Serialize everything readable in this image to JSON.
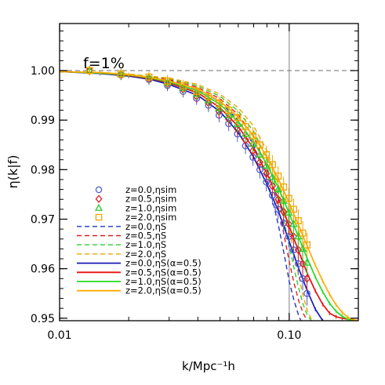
{
  "chart_data": {
    "type": "line",
    "title": "",
    "annotation": "f=1%",
    "xlabel": "k/Mpc⁻¹h",
    "ylabel": "η(k|f)",
    "xscale": "log",
    "xlim": [
      0.01,
      0.2
    ],
    "ylim": [
      0.9495,
      1.0095
    ],
    "x_ticks": [
      0.01,
      0.1
    ],
    "x_tick_labels": [
      "0.01",
      "0.10"
    ],
    "y_ticks": [
      0.95,
      0.96,
      0.97,
      0.98,
      0.99,
      1.0
    ],
    "y_tick_labels": [
      "0.95",
      "0.96",
      "0.97",
      "0.98",
      "0.99",
      "1.00"
    ],
    "reference_hline": 1.0,
    "reference_vline": 0.1,
    "grid": false,
    "legend_position": "lower-left",
    "series": [
      {
        "name": "z=0.0,ηsim",
        "kind": "markers",
        "marker": "circle",
        "color": "#4a5fd0",
        "x": [
          0.0135,
          0.0185,
          0.0245,
          0.0295,
          0.0345,
          0.0395,
          0.0445,
          0.0495,
          0.0545,
          0.0595,
          0.0645,
          0.0695,
          0.0745,
          0.0795,
          0.0845,
          0.0895,
          0.0945,
          0.0995,
          0.1045,
          0.1095,
          0.1145,
          0.1195
        ],
        "y": [
          1.0,
          0.9991,
          0.9982,
          0.997,
          0.9958,
          0.9944,
          0.993,
          0.991,
          0.9893,
          0.9872,
          0.9848,
          0.9825,
          0.98,
          0.9775,
          0.9748,
          0.972,
          0.9692,
          0.9665,
          0.9638,
          0.961,
          0.958,
          0.955
        ]
      },
      {
        "name": "z=0.5,ηsim",
        "kind": "markers",
        "marker": "diamond",
        "color": "#e02020",
        "x": [
          0.0135,
          0.0185,
          0.0245,
          0.0295,
          0.0345,
          0.0395,
          0.0445,
          0.0495,
          0.0545,
          0.0595,
          0.0645,
          0.0695,
          0.0745,
          0.0795,
          0.0845,
          0.0895,
          0.0945,
          0.0995,
          0.1045,
          0.1095,
          0.1145,
          0.1195
        ],
        "y": [
          1.0,
          0.9992,
          0.9984,
          0.9973,
          0.9962,
          0.9948,
          0.9935,
          0.9917,
          0.9902,
          0.9882,
          0.986,
          0.9838,
          0.9815,
          0.9792,
          0.9767,
          0.974,
          0.9715,
          0.969,
          0.9665,
          0.9638,
          0.961,
          0.958
        ]
      },
      {
        "name": "z=1.0,ηsim",
        "kind": "markers",
        "marker": "triangle",
        "color": "#2ecc2e",
        "x": [
          0.0135,
          0.0185,
          0.0245,
          0.0295,
          0.0345,
          0.0395,
          0.0445,
          0.0495,
          0.0545,
          0.0595,
          0.0645,
          0.0695,
          0.0745,
          0.0795,
          0.0845,
          0.0895,
          0.0945,
          0.0995,
          0.1045,
          0.1095,
          0.1145,
          0.1195
        ],
        "y": [
          1.0,
          0.9993,
          0.9986,
          0.9976,
          0.9965,
          0.9953,
          0.994,
          0.9924,
          0.991,
          0.9892,
          0.9872,
          0.9852,
          0.983,
          0.9808,
          0.9785,
          0.976,
          0.9737,
          0.9713,
          0.969,
          0.9665,
          0.964,
          0.9612
        ]
      },
      {
        "name": "z=2.0,ηsim",
        "kind": "markers",
        "marker": "square",
        "color": "#f0a500",
        "x": [
          0.0135,
          0.0185,
          0.0245,
          0.0295,
          0.0345,
          0.0395,
          0.0445,
          0.0495,
          0.0545,
          0.0595,
          0.0645,
          0.0695,
          0.0745,
          0.0795,
          0.0845,
          0.0895,
          0.0945,
          0.0995,
          0.1045,
          0.1095,
          0.1145,
          0.1195
        ],
        "y": [
          1.0,
          0.9993,
          0.9987,
          0.9979,
          0.9969,
          0.9958,
          0.9947,
          0.9933,
          0.992,
          0.9905,
          0.9887,
          0.9868,
          0.985,
          0.983,
          0.981,
          0.9787,
          0.9765,
          0.9742,
          0.972,
          0.9697,
          0.9672,
          0.9648
        ]
      },
      {
        "name": "z=0.0,ηS",
        "kind": "dashed",
        "color": "#2233cc",
        "x": [
          0.01,
          0.015,
          0.02,
          0.03,
          0.04,
          0.05,
          0.06,
          0.07,
          0.08,
          0.085,
          0.09,
          0.095,
          0.1,
          0.105,
          0.11,
          0.115
        ],
        "y": [
          0.9998,
          0.9995,
          0.9991,
          0.998,
          0.9962,
          0.9937,
          0.99,
          0.985,
          0.978,
          0.9735,
          0.9685,
          0.963,
          0.9575,
          0.9535,
          0.9505,
          0.9485
        ]
      },
      {
        "name": "z=0.5,ηS",
        "kind": "dashed",
        "color": "#e02020",
        "x": [
          0.01,
          0.015,
          0.02,
          0.03,
          0.04,
          0.05,
          0.06,
          0.07,
          0.08,
          0.09,
          0.095,
          0.1,
          0.105,
          0.11,
          0.115,
          0.12
        ],
        "y": [
          0.9998,
          0.9996,
          0.9992,
          0.9982,
          0.9966,
          0.9943,
          0.9911,
          0.9866,
          0.9805,
          0.972,
          0.9668,
          0.9615,
          0.957,
          0.9535,
          0.951,
          0.9495
        ]
      },
      {
        "name": "z=1.0,ηS",
        "kind": "dashed",
        "color": "#2ecc2e",
        "x": [
          0.01,
          0.015,
          0.02,
          0.03,
          0.04,
          0.05,
          0.06,
          0.07,
          0.08,
          0.09,
          0.1,
          0.105,
          0.11,
          0.115,
          0.12,
          0.125
        ],
        "y": [
          0.9998,
          0.9996,
          0.9993,
          0.9984,
          0.9969,
          0.9948,
          0.9918,
          0.9877,
          0.9822,
          0.9745,
          0.9648,
          0.96,
          0.956,
          0.9528,
          0.9506,
          0.9495
        ]
      },
      {
        "name": "z=2.0,ηS",
        "kind": "dashed",
        "color": "#f0a500",
        "x": [
          0.01,
          0.015,
          0.02,
          0.03,
          0.04,
          0.05,
          0.06,
          0.07,
          0.08,
          0.09,
          0.1,
          0.11,
          0.115,
          0.12,
          0.125,
          0.13
        ],
        "y": [
          0.9998,
          0.9996,
          0.9993,
          0.9985,
          0.9972,
          0.9952,
          0.9925,
          0.9888,
          0.9838,
          0.9768,
          0.968,
          0.9585,
          0.9545,
          0.9515,
          0.9498,
          0.949
        ]
      },
      {
        "name": "z=0.0,ηS(α=0.5)",
        "kind": "solid",
        "color": "#1a1ab8",
        "x": [
          0.01,
          0.015,
          0.02,
          0.025,
          0.03,
          0.04,
          0.05,
          0.06,
          0.07,
          0.08,
          0.09,
          0.1,
          0.11,
          0.12,
          0.13,
          0.14
        ],
        "y": [
          0.9998,
          0.9994,
          0.9989,
          0.9982,
          0.9972,
          0.995,
          0.9917,
          0.9875,
          0.9825,
          0.977,
          0.9715,
          0.9655,
          0.96,
          0.9555,
          0.9518,
          0.9495
        ]
      },
      {
        "name": "z=0.5,ηS(α=0.5)",
        "kind": "solid",
        "color": "#e81010",
        "x": [
          0.01,
          0.015,
          0.02,
          0.025,
          0.03,
          0.04,
          0.05,
          0.06,
          0.07,
          0.08,
          0.09,
          0.1,
          0.11,
          0.12,
          0.13,
          0.14,
          0.15,
          0.16,
          0.17,
          0.18
        ],
        "y": [
          0.9998,
          0.9995,
          0.999,
          0.9984,
          0.9975,
          0.9955,
          0.9925,
          0.9887,
          0.9842,
          0.9792,
          0.974,
          0.9686,
          0.9635,
          0.959,
          0.9555,
          0.9528,
          0.951,
          0.9503,
          0.95,
          0.9498
        ]
      },
      {
        "name": "z=1.0,ηS(α=0.5)",
        "kind": "solid",
        "color": "#22dd22",
        "x": [
          0.01,
          0.015,
          0.02,
          0.025,
          0.03,
          0.04,
          0.05,
          0.06,
          0.07,
          0.08,
          0.09,
          0.1,
          0.11,
          0.12,
          0.13,
          0.14,
          0.15,
          0.16,
          0.17,
          0.18,
          0.19
        ],
        "y": [
          0.9998,
          0.9995,
          0.9991,
          0.9985,
          0.9977,
          0.9959,
          0.9932,
          0.9897,
          0.9856,
          0.981,
          0.9762,
          0.9712,
          0.9663,
          0.962,
          0.9583,
          0.9553,
          0.953,
          0.9514,
          0.9504,
          0.9498,
          0.9495
        ]
      },
      {
        "name": "z=2.0,ηS(α=0.5)",
        "kind": "solid",
        "color": "#ffaa00",
        "x": [
          0.01,
          0.015,
          0.02,
          0.025,
          0.03,
          0.04,
          0.05,
          0.06,
          0.07,
          0.08,
          0.09,
          0.1,
          0.11,
          0.12,
          0.13,
          0.14,
          0.15,
          0.16,
          0.17,
          0.18,
          0.19,
          0.2
        ],
        "y": [
          0.9998,
          0.9996,
          0.9992,
          0.9986,
          0.9979,
          0.9963,
          0.9938,
          0.9906,
          0.9868,
          0.9826,
          0.978,
          0.9733,
          0.9687,
          0.9645,
          0.9607,
          0.9575,
          0.9548,
          0.9527,
          0.9512,
          0.9502,
          0.9497,
          0.9495
        ]
      }
    ]
  }
}
